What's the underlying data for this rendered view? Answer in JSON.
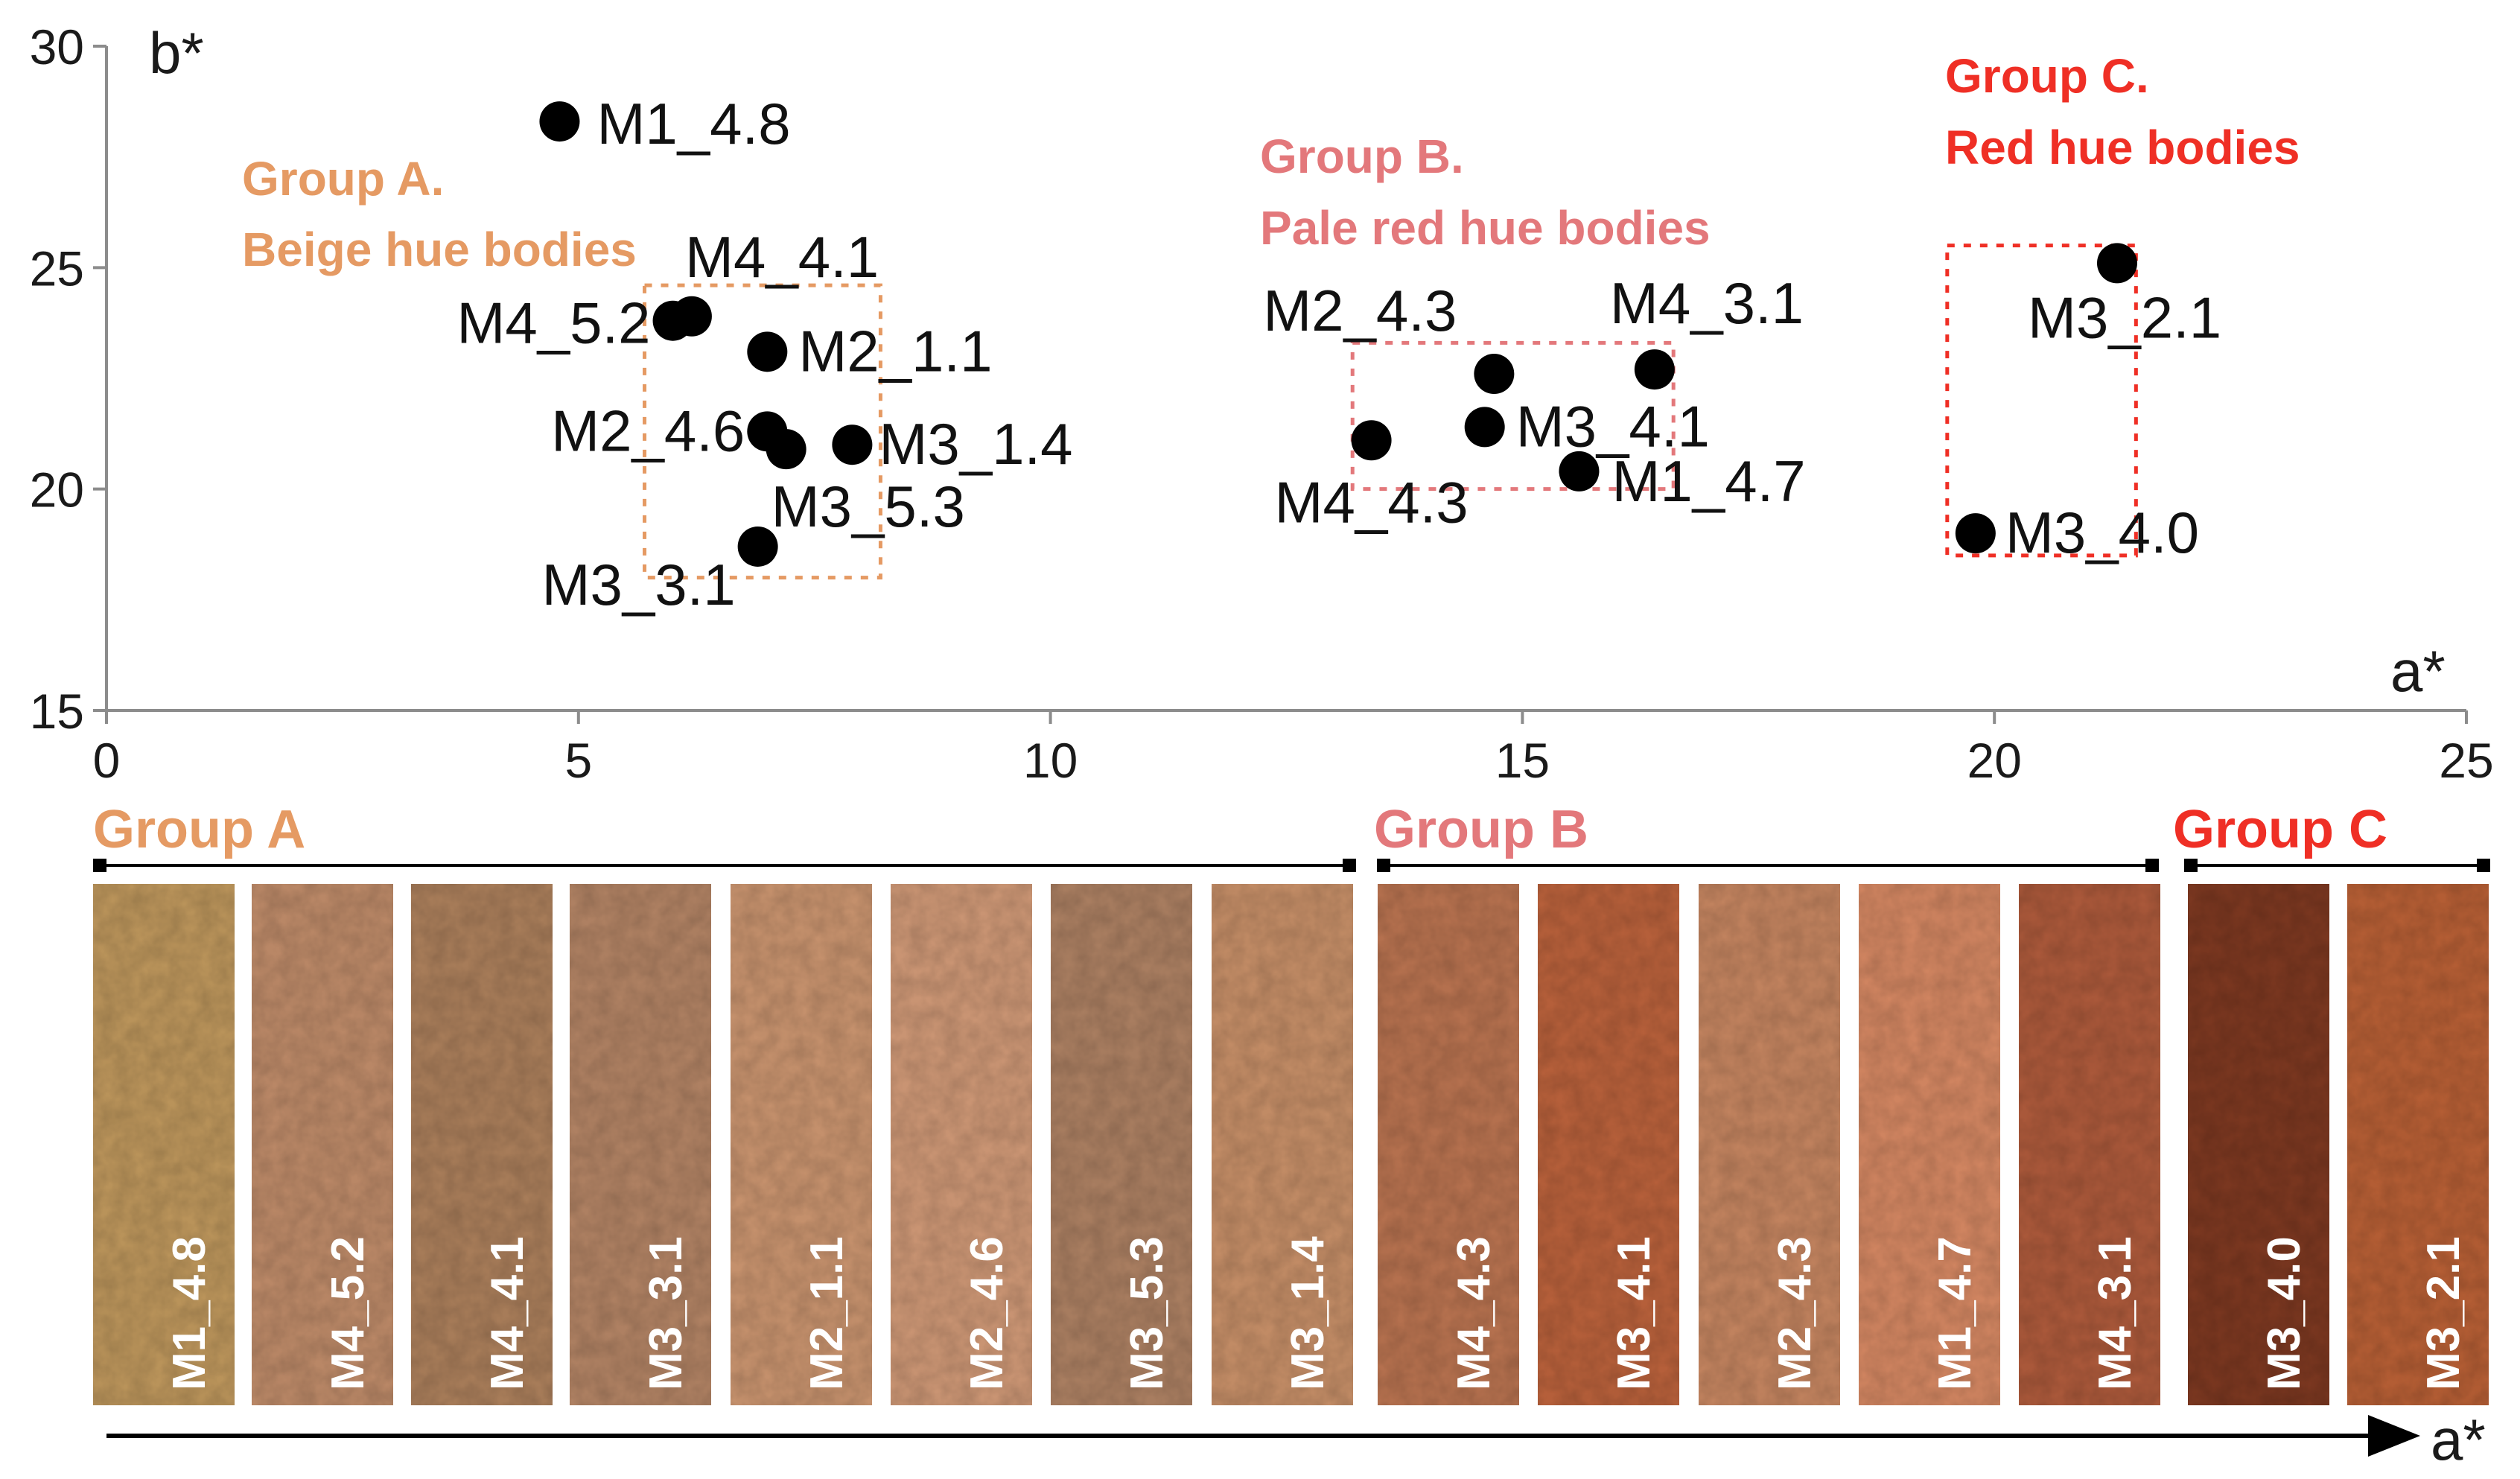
{
  "chart_data": {
    "type": "scatter",
    "title": "",
    "xlabel": "a*",
    "ylabel": "b*",
    "xlim": [
      0,
      25
    ],
    "ylim": [
      15,
      30
    ],
    "xticks": [
      "0",
      "5",
      "10",
      "15",
      "20",
      "25"
    ],
    "yticks": [
      "15",
      "20",
      "25",
      "30"
    ],
    "grid": false,
    "points": [
      {
        "label": "M1_4.8",
        "x": 4.8,
        "y": 28.3,
        "group": "A"
      },
      {
        "label": "M4_4.1",
        "x": 6.2,
        "y": 23.9,
        "group": "A"
      },
      {
        "label": "M4_5.2",
        "x": 6.0,
        "y": 23.8,
        "group": "A"
      },
      {
        "label": "M2_1.1",
        "x": 7.0,
        "y": 23.1,
        "group": "A"
      },
      {
        "label": "M2_4.6",
        "x": 7.0,
        "y": 21.3,
        "group": "A"
      },
      {
        "label": "M3_5.3",
        "x": 7.2,
        "y": 20.9,
        "group": "A"
      },
      {
        "label": "M3_1.4",
        "x": 7.9,
        "y": 21.0,
        "group": "A"
      },
      {
        "label": "M3_3.1",
        "x": 6.9,
        "y": 18.7,
        "group": "A"
      },
      {
        "label": "M2_4.3",
        "x": 14.7,
        "y": 22.6,
        "group": "B"
      },
      {
        "label": "M4_3.1",
        "x": 16.4,
        "y": 22.7,
        "group": "B"
      },
      {
        "label": "M3_4.1",
        "x": 14.6,
        "y": 21.4,
        "group": "B"
      },
      {
        "label": "M4_4.3",
        "x": 13.4,
        "y": 21.1,
        "group": "B"
      },
      {
        "label": "M1_4.7",
        "x": 15.6,
        "y": 20.4,
        "group": "B"
      },
      {
        "label": "M3_2.1",
        "x": 21.3,
        "y": 25.1,
        "group": "C"
      },
      {
        "label": "M3_4.0",
        "x": 19.8,
        "y": 19.0,
        "group": "C"
      }
    ],
    "groups": [
      {
        "id": "A",
        "title": "Group A.",
        "subtitle": "Beige hue bodies",
        "color": "#e59a63",
        "box_x": [
          5.7,
          8.2
        ],
        "box_y": [
          18.0,
          24.6
        ]
      },
      {
        "id": "B",
        "title": "Group B.",
        "subtitle": "Pale red hue bodies",
        "color": "#e3787b",
        "box_x": [
          13.2,
          16.6
        ],
        "box_y": [
          20.0,
          23.3
        ]
      },
      {
        "id": "C",
        "title": "Group C.",
        "subtitle": "Red hue bodies",
        "color": "#ef2f25",
        "box_x": [
          19.5,
          21.5
        ],
        "box_y": [
          18.5,
          25.5
        ]
      }
    ]
  },
  "swatches": {
    "sections": [
      {
        "label": "Group A",
        "color": "#e59a63"
      },
      {
        "label": "Group B",
        "color": "#e3787b"
      },
      {
        "label": "Group C",
        "color": "#ef2f25"
      }
    ],
    "items": [
      {
        "label": "M1_4.8",
        "color": "#b9935a",
        "group": "A"
      },
      {
        "label": "M4_5.2",
        "color": "#b98766",
        "group": "A"
      },
      {
        "label": "M4_4.1",
        "color": "#a77c59",
        "group": "A"
      },
      {
        "label": "M3_3.1",
        "color": "#ae8062",
        "group": "A"
      },
      {
        "label": "M2_1.1",
        "color": "#c4906c",
        "group": "A"
      },
      {
        "label": "M2_4.6",
        "color": "#c99473",
        "group": "A"
      },
      {
        "label": "M3_5.3",
        "color": "#a87d60",
        "group": "A"
      },
      {
        "label": "M3_1.4",
        "color": "#c18b65",
        "group": "A"
      },
      {
        "label": "M4_4.3",
        "color": "#b4704e",
        "group": "B"
      },
      {
        "label": "M3_4.1",
        "color": "#b55f3a",
        "group": "B"
      },
      {
        "label": "M2_4.3",
        "color": "#c0825e",
        "group": "B"
      },
      {
        "label": "M1_4.7",
        "color": "#cf8460",
        "group": "B"
      },
      {
        "label": "M4_3.1",
        "color": "#a9583a",
        "group": "B"
      },
      {
        "label": "M3_4.0",
        "color": "#7a3720",
        "group": "C"
      },
      {
        "label": "M3_2.1",
        "color": "#b35d34",
        "group": "C"
      }
    ],
    "arrow_label": "a*"
  }
}
